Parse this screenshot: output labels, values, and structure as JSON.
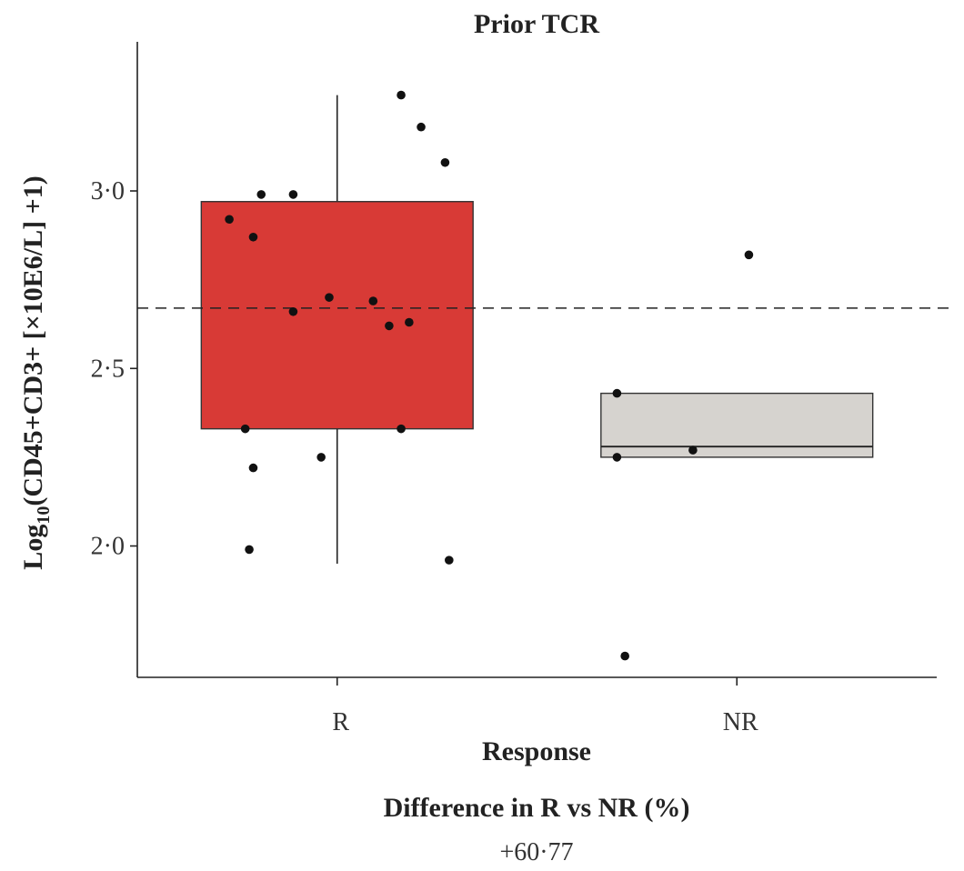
{
  "chart_data": {
    "type": "box",
    "title": "Prior TCR",
    "xlabel": "Response",
    "ylabel_prefix": "Log",
    "ylabel_subscript": "10",
    "ylabel_rest": "(CD45+CD3+ [×10E6/L] +1)",
    "categories": [
      "R",
      "NR"
    ],
    "ylim": [
      1.63,
      3.42
    ],
    "yticks": [
      2.0,
      2.5,
      3.0
    ],
    "ytick_labels": [
      "2·0",
      "2·5",
      "3·0"
    ],
    "reference_line": 2.67,
    "colors": {
      "R": "#d83a36",
      "NR": "#d6d3cf"
    },
    "boxes": [
      {
        "category": "R",
        "q1": 2.33,
        "median": 2.67,
        "q3": 2.97,
        "whisker_low": 1.95,
        "whisker_high": 3.27,
        "median_visible": false
      },
      {
        "category": "NR",
        "q1": 2.25,
        "median": 2.28,
        "q3": 2.43,
        "whisker_low": 2.25,
        "whisker_high": 2.43,
        "median_visible": true
      }
    ],
    "points": [
      {
        "category": "R",
        "jitter": 0.16,
        "value": 3.27
      },
      {
        "category": "R",
        "jitter": 0.21,
        "value": 3.18
      },
      {
        "category": "R",
        "jitter": 0.27,
        "value": 3.08
      },
      {
        "category": "R",
        "jitter": -0.19,
        "value": 2.99
      },
      {
        "category": "R",
        "jitter": -0.11,
        "value": 2.99
      },
      {
        "category": "R",
        "jitter": -0.27,
        "value": 2.92
      },
      {
        "category": "R",
        "jitter": -0.21,
        "value": 2.87
      },
      {
        "category": "R",
        "jitter": -0.02,
        "value": 2.7
      },
      {
        "category": "R",
        "jitter": 0.09,
        "value": 2.69
      },
      {
        "category": "R",
        "jitter": -0.11,
        "value": 2.66
      },
      {
        "category": "R",
        "jitter": 0.18,
        "value": 2.63
      },
      {
        "category": "R",
        "jitter": 0.13,
        "value": 2.62
      },
      {
        "category": "R",
        "jitter": -0.23,
        "value": 2.33
      },
      {
        "category": "R",
        "jitter": 0.16,
        "value": 2.33
      },
      {
        "category": "R",
        "jitter": -0.04,
        "value": 2.25
      },
      {
        "category": "R",
        "jitter": -0.21,
        "value": 2.22
      },
      {
        "category": "R",
        "jitter": -0.22,
        "value": 1.99
      },
      {
        "category": "R",
        "jitter": 0.28,
        "value": 1.96
      },
      {
        "category": "NR",
        "jitter": 0.03,
        "value": 2.82
      },
      {
        "category": "NR",
        "jitter": -0.3,
        "value": 2.43
      },
      {
        "category": "NR",
        "jitter": -0.11,
        "value": 2.27
      },
      {
        "category": "NR",
        "jitter": -0.3,
        "value": 2.25
      },
      {
        "category": "NR",
        "jitter": -0.28,
        "value": 1.69
      }
    ]
  },
  "footer": {
    "label": "Difference in R vs NR (%)",
    "value": "+60·77"
  }
}
